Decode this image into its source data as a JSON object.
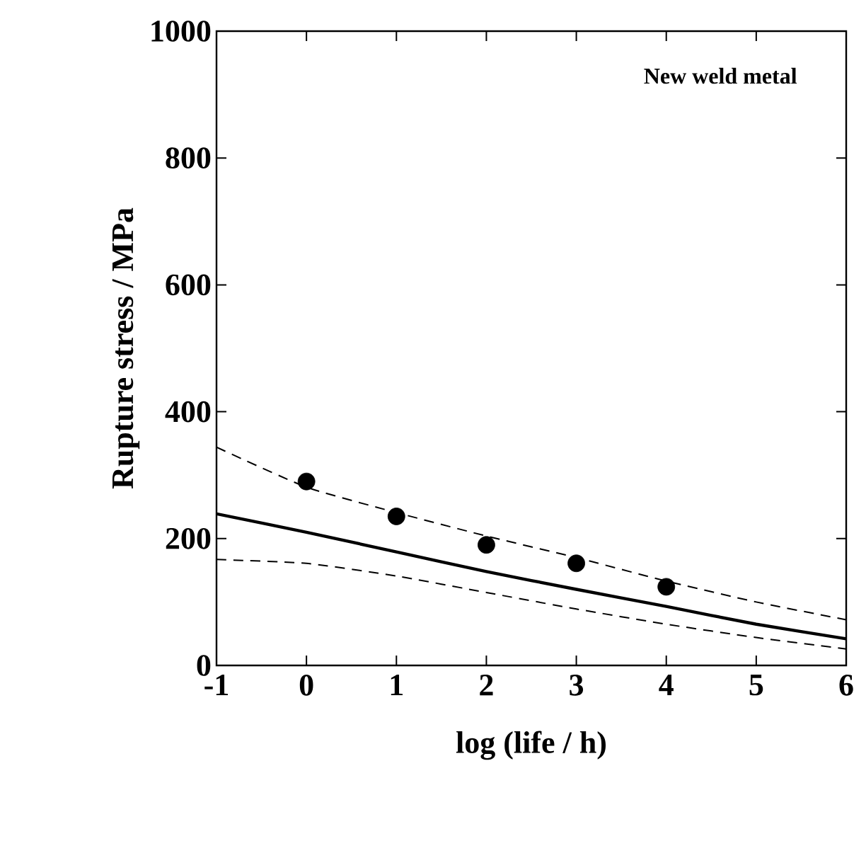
{
  "chart_data": {
    "type": "line",
    "xlabel": "log (life / h)",
    "ylabel": "Rupture stress / MPa",
    "annotations": [
      "New weld metal"
    ],
    "xlim": [
      -1,
      6
    ],
    "ylim": [
      0,
      1000
    ],
    "xticks": [
      -1,
      0,
      1,
      2,
      3,
      4,
      5,
      6
    ],
    "yticks": [
      0,
      200,
      400,
      600,
      800,
      1000
    ],
    "series": [
      {
        "type": "scatter",
        "color": "#000000",
        "x": [
          0,
          1,
          2,
          3,
          4
        ],
        "values": [
          290,
          235,
          190,
          161,
          124
        ]
      },
      {
        "color": "#000000",
        "line_style": "solid",
        "x": [
          -1,
          0,
          1,
          2,
          3,
          4,
          5,
          6
        ],
        "values": [
          239,
          210,
          179,
          148,
          120,
          93,
          65,
          42
        ]
      },
      {
        "type": "line",
        "color": "#000000",
        "line_style": "dashed",
        "x": [
          -1,
          0,
          1,
          2,
          3,
          4,
          5,
          6
        ],
        "values": [
          344,
          281,
          241,
          204,
          170,
          133,
          100,
          72
        ]
      },
      {
        "type": "line",
        "color": "#000000",
        "line_style": "dashed",
        "x": [
          -1,
          0,
          1,
          2,
          3,
          4,
          5,
          6
        ],
        "values": [
          167,
          161,
          141,
          115,
          89,
          65,
          44,
          26
        ]
      }
    ]
  }
}
